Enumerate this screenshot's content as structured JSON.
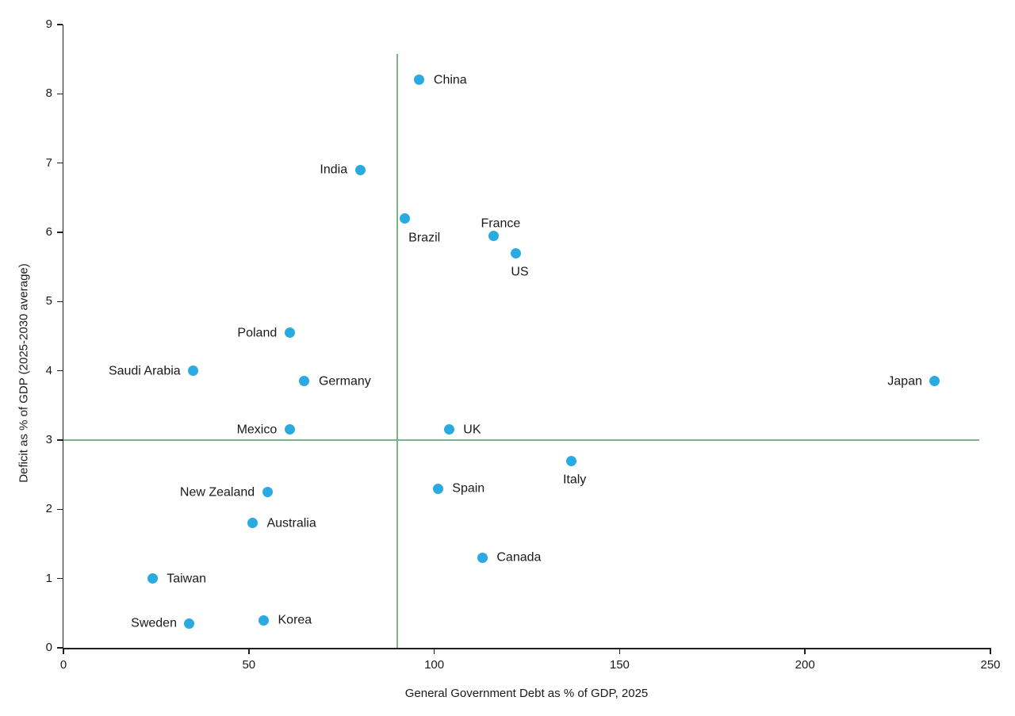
{
  "chart_data": {
    "type": "scatter",
    "title": "",
    "xlabel": "General Government Debt as % of GDP, 2025",
    "ylabel": "Deficit as % of GDP (2025-2030 average)",
    "xlim": [
      0,
      250
    ],
    "ylim": [
      0,
      9
    ],
    "x_ticks": [
      0,
      50,
      100,
      150,
      200,
      250
    ],
    "y_ticks": [
      0,
      1,
      2,
      3,
      4,
      5,
      6,
      7,
      8,
      9
    ],
    "grid": false,
    "legend": "none",
    "marker_color": "#29ABE2",
    "axis_color": "#1f1f1f",
    "text_color": "#1a1a1a",
    "background_color": "#ffffff",
    "reference_lines": [
      {
        "orientation": "vertical",
        "x": 90,
        "y_from": 0,
        "y_to": 8.58,
        "color": "#7CB487"
      },
      {
        "orientation": "horizontal",
        "y": 3,
        "x_from": 0,
        "x_to": 247,
        "color": "#7CB487"
      }
    ],
    "points": [
      {
        "label": "China",
        "x": 96,
        "y": 8.2,
        "label_side": "right"
      },
      {
        "label": "India",
        "x": 80,
        "y": 6.9,
        "label_side": "left"
      },
      {
        "label": "Brazil",
        "x": 92,
        "y": 6.2,
        "label_side": "below",
        "label_dx": 25
      },
      {
        "label": "France",
        "x": 116,
        "y": 5.95,
        "label_side": "above",
        "label_dx": 9
      },
      {
        "label": "US",
        "x": 122,
        "y": 5.7,
        "label_side": "below",
        "label_dx": 5
      },
      {
        "label": "Poland",
        "x": 61,
        "y": 4.55,
        "label_side": "left"
      },
      {
        "label": "Saudi Arabia",
        "x": 35,
        "y": 4.0,
        "label_side": "left"
      },
      {
        "label": "Germany",
        "x": 65,
        "y": 3.85,
        "label_side": "right"
      },
      {
        "label": "Japan",
        "x": 235,
        "y": 3.85,
        "label_side": "left"
      },
      {
        "label": "Mexico",
        "x": 61,
        "y": 3.15,
        "label_side": "left"
      },
      {
        "label": "UK",
        "x": 104,
        "y": 3.15,
        "label_side": "right"
      },
      {
        "label": "Italy",
        "x": 137,
        "y": 2.7,
        "label_side": "below",
        "label_dx": 4
      },
      {
        "label": "Spain",
        "x": 101,
        "y": 2.3,
        "label_side": "right"
      },
      {
        "label": "New Zealand",
        "x": 55,
        "y": 2.25,
        "label_side": "left"
      },
      {
        "label": "Australia",
        "x": 51,
        "y": 1.8,
        "label_side": "right"
      },
      {
        "label": "Canada",
        "x": 113,
        "y": 1.3,
        "label_side": "right"
      },
      {
        "label": "Taiwan",
        "x": 24,
        "y": 1.0,
        "label_side": "right"
      },
      {
        "label": "Sweden",
        "x": 34,
        "y": 0.35,
        "label_side": "left"
      },
      {
        "label": "Korea",
        "x": 54,
        "y": 0.4,
        "label_side": "right"
      }
    ]
  }
}
